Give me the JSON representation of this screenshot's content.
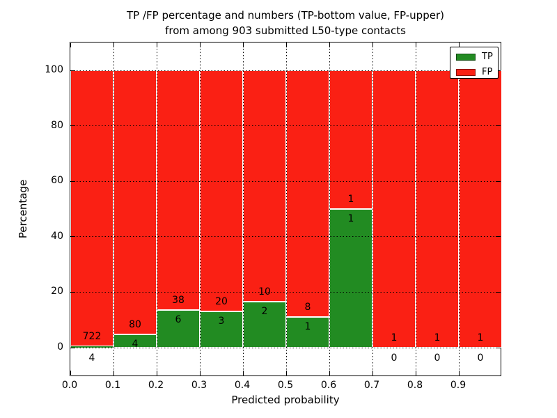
{
  "figure": {
    "title_line1": "TP /FP percentage and numbers (TP-bottom value, FP-upper)",
    "title_line2": "from among 903 submitted L50-type contacts",
    "background": "#ffffff"
  },
  "axes": {
    "xlabel": "Predicted probability",
    "ylabel": "Percentage",
    "xtick_labels": [
      "0.0",
      "0.1",
      "0.2",
      "0.3",
      "0.4",
      "0.5",
      "0.6",
      "0.7",
      "0.8",
      "0.9"
    ],
    "xtick_values": [
      0,
      0.1,
      0.2,
      0.3,
      0.4,
      0.5,
      0.6,
      0.7,
      0.8,
      0.9
    ],
    "ytick_labels": [
      "0",
      "20",
      "40",
      "60",
      "80",
      "100"
    ],
    "ytick_values": [
      0,
      20,
      40,
      60,
      80,
      100
    ],
    "xlim": [
      0.0,
      1.0
    ],
    "ylim": [
      -10.5,
      110
    ],
    "grid_style": "dotted"
  },
  "legend": {
    "position": "upper right",
    "items": [
      {
        "label": "TP",
        "color": "#228b22"
      },
      {
        "label": "FP",
        "color": "#fa2014"
      }
    ]
  },
  "colors": {
    "tp_green": "#228b22",
    "fp_red": "#fa2014",
    "bar_edge": "#ffffff",
    "grid": "#000000",
    "text": "#000000"
  },
  "chart_data": {
    "type": "bar",
    "stacked": true,
    "title": "TP /FP percentage and numbers (TP-bottom value, FP-upper) from among 903 submitted L50-type contacts",
    "xlabel": "Predicted probability",
    "ylabel": "Percentage",
    "xlim": [
      0.0,
      1.0
    ],
    "ylim": [
      -10.5,
      110
    ],
    "grid": "dotted",
    "legend_position": "upper right",
    "total_contacts": 903,
    "bin_width": 0.1,
    "categories": [
      "0.0-0.1",
      "0.1-0.2",
      "0.2-0.3",
      "0.3-0.4",
      "0.4-0.5",
      "0.5-0.6",
      "0.6-0.7",
      "0.7-0.8",
      "0.8-0.9",
      "0.9-1.0"
    ],
    "series": [
      {
        "name": "TP",
        "color": "#228b22",
        "counts": [
          4,
          4,
          6,
          3,
          2,
          1,
          1,
          0,
          0,
          0
        ]
      },
      {
        "name": "FP",
        "color": "#fa2014",
        "counts": [
          722,
          80,
          38,
          20,
          10,
          8,
          1,
          1,
          1,
          1
        ]
      }
    ],
    "bins": [
      {
        "x_start": 0.0,
        "x_end": 0.1,
        "tp_count": 4,
        "fp_count": 722,
        "tp_pct": 0.55,
        "fp_pct": 99.45
      },
      {
        "x_start": 0.1,
        "x_end": 0.2,
        "tp_count": 4,
        "fp_count": 80,
        "tp_pct": 4.76,
        "fp_pct": 95.24
      },
      {
        "x_start": 0.2,
        "x_end": 0.3,
        "tp_count": 6,
        "fp_count": 38,
        "tp_pct": 13.64,
        "fp_pct": 86.36
      },
      {
        "x_start": 0.3,
        "x_end": 0.4,
        "tp_count": 3,
        "fp_count": 20,
        "tp_pct": 13.04,
        "fp_pct": 86.96
      },
      {
        "x_start": 0.4,
        "x_end": 0.5,
        "tp_count": 2,
        "fp_count": 10,
        "tp_pct": 16.67,
        "fp_pct": 83.33
      },
      {
        "x_start": 0.5,
        "x_end": 0.6,
        "tp_count": 1,
        "fp_count": 8,
        "tp_pct": 11.11,
        "fp_pct": 88.89
      },
      {
        "x_start": 0.6,
        "x_end": 0.7,
        "tp_count": 1,
        "fp_count": 1,
        "tp_pct": 50.0,
        "fp_pct": 50.0
      },
      {
        "x_start": 0.7,
        "x_end": 0.8,
        "tp_count": 0,
        "fp_count": 1,
        "tp_pct": 0.0,
        "fp_pct": 100.0
      },
      {
        "x_start": 0.8,
        "x_end": 0.9,
        "tp_count": 0,
        "fp_count": 1,
        "tp_pct": 0.0,
        "fp_pct": 100.0
      },
      {
        "x_start": 0.9,
        "x_end": 1.0,
        "tp_count": 0,
        "fp_count": 1,
        "tp_pct": 0.0,
        "fp_pct": 100.0
      }
    ]
  }
}
